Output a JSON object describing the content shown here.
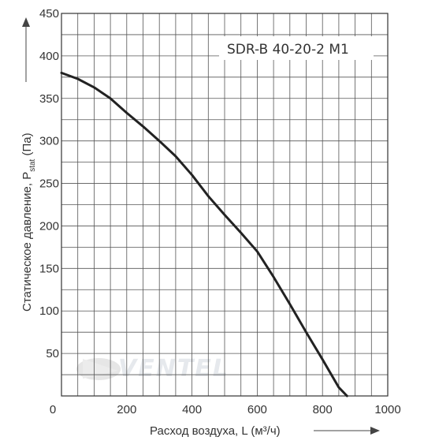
{
  "chart_data": {
    "type": "line",
    "title": "",
    "legend_label": "SDR-B 40-20-2 M1",
    "ylabel_main": "Статическое давление, P",
    "ylabel_sub": "stat",
    "ylabel_unit": " (Па)",
    "xlabel": "Расход воздуха, L (м³/ч)",
    "xlim": [
      0,
      1000
    ],
    "ylim": [
      0,
      450
    ],
    "x_ticks": [
      0,
      200,
      400,
      600,
      800,
      1000
    ],
    "x_tick_labels": [
      "0",
      "200",
      "400",
      "600",
      "800",
      "1000"
    ],
    "y_ticks": [
      0,
      50,
      100,
      150,
      200,
      250,
      300,
      350,
      400,
      450
    ],
    "y_tick_labels": [
      "",
      "50",
      "100",
      "150",
      "200",
      "250",
      "300",
      "350",
      "400",
      "450"
    ],
    "grid": true,
    "grid_step_x": 50,
    "grid_step_y": 25,
    "watermark": "VENTEL",
    "series": [
      {
        "name": "SDR-B 40-20-2 M1",
        "color": "#222222",
        "x": [
          0,
          50,
          100,
          150,
          200,
          250,
          300,
          350,
          400,
          450,
          500,
          550,
          600,
          650,
          700,
          750,
          800,
          850,
          875
        ],
        "y": [
          380,
          373,
          363,
          350,
          333,
          317,
          300,
          282,
          260,
          235,
          213,
          192,
          170,
          140,
          108,
          75,
          43,
          10,
          0
        ]
      }
    ]
  }
}
